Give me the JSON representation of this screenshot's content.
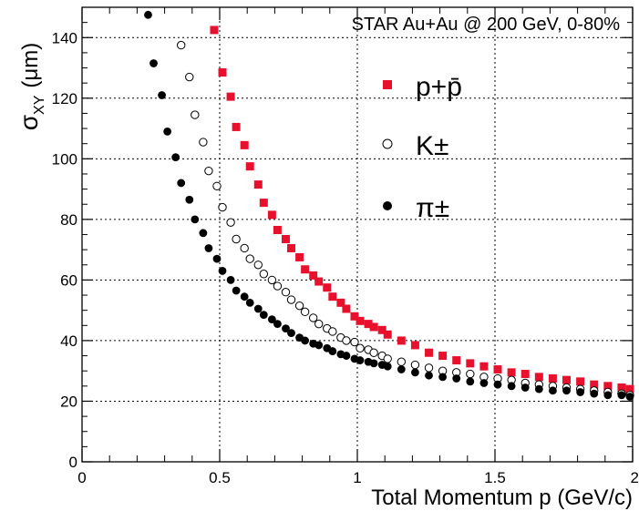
{
  "chart_data": {
    "type": "scatter",
    "annotation": "STAR Au+Au @ 200 GeV, 0-80%",
    "xlabel": "Total Momentum p (GeV/c)",
    "ylabel": {
      "sigma": "σ",
      "sub": "XY",
      "unit": "(μm)"
    },
    "xlim": [
      0,
      2
    ],
    "ylim": [
      0,
      150
    ],
    "x_ticks": [
      "0",
      "0.5",
      "1",
      "1.5",
      "2"
    ],
    "y_ticks": [
      "0",
      "20",
      "40",
      "60",
      "80",
      "100",
      "120",
      "140"
    ],
    "grid": true,
    "legend_position": "top-right",
    "series": [
      {
        "name": "p+p̄",
        "marker": "square-filled",
        "color": "#e8112d",
        "x": [
          0.48,
          0.51,
          0.54,
          0.56,
          0.59,
          0.61,
          0.64,
          0.66,
          0.69,
          0.71,
          0.74,
          0.76,
          0.79,
          0.81,
          0.84,
          0.86,
          0.89,
          0.91,
          0.94,
          0.96,
          0.99,
          1.01,
          1.04,
          1.06,
          1.09,
          1.11,
          1.16,
          1.21,
          1.26,
          1.31,
          1.36,
          1.41,
          1.46,
          1.51,
          1.56,
          1.61,
          1.66,
          1.71,
          1.76,
          1.81,
          1.86,
          1.91,
          1.96,
          1.99
        ],
        "y": [
          142.5,
          128.5,
          120.5,
          110.5,
          104.5,
          97.5,
          91.5,
          85.5,
          81.5,
          76.5,
          73.5,
          70.5,
          67.5,
          63.5,
          61.5,
          59.5,
          57.5,
          54.5,
          52.5,
          50.5,
          48.0,
          46.5,
          45.5,
          44.5,
          43.5,
          42.0,
          40.0,
          38.5,
          36.0,
          35.0,
          33.5,
          32.5,
          31.5,
          30.5,
          29.5,
          29.0,
          28.0,
          27.5,
          27.0,
          26.5,
          25.5,
          25.0,
          24.5,
          24.0
        ]
      },
      {
        "name": "K±",
        "marker": "circle-open",
        "color": "#000000",
        "x": [
          0.36,
          0.39,
          0.41,
          0.44,
          0.46,
          0.49,
          0.51,
          0.54,
          0.56,
          0.59,
          0.61,
          0.64,
          0.66,
          0.69,
          0.71,
          0.74,
          0.76,
          0.79,
          0.81,
          0.84,
          0.86,
          0.89,
          0.91,
          0.94,
          0.96,
          0.99,
          1.01,
          1.04,
          1.06,
          1.09,
          1.11,
          1.16,
          1.21,
          1.26,
          1.31,
          1.36,
          1.41,
          1.46,
          1.51,
          1.56,
          1.61,
          1.66,
          1.71,
          1.76,
          1.81,
          1.86,
          1.91,
          1.96,
          1.99
        ],
        "y": [
          137.5,
          127.0,
          114.5,
          105.5,
          96.0,
          91.0,
          84.0,
          79.0,
          73.5,
          70.5,
          67.0,
          65.0,
          62.0,
          60.0,
          58.0,
          56.0,
          53.5,
          51.5,
          49.5,
          47.5,
          45.5,
          44.0,
          43.0,
          41.0,
          40.0,
          39.5,
          37.5,
          37.0,
          36.0,
          35.0,
          34.0,
          33.0,
          32.0,
          31.0,
          30.0,
          29.5,
          29.0,
          28.0,
          27.5,
          27.0,
          26.0,
          25.5,
          25.0,
          24.5,
          24.0,
          23.5,
          23.0,
          22.5,
          22.0
        ]
      },
      {
        "name": "π±",
        "marker": "circle-filled",
        "color": "#000000",
        "x": [
          0.24,
          0.26,
          0.29,
          0.31,
          0.34,
          0.36,
          0.39,
          0.41,
          0.44,
          0.46,
          0.49,
          0.51,
          0.54,
          0.56,
          0.59,
          0.61,
          0.64,
          0.66,
          0.69,
          0.71,
          0.74,
          0.76,
          0.79,
          0.81,
          0.84,
          0.86,
          0.89,
          0.91,
          0.94,
          0.96,
          0.99,
          1.01,
          1.04,
          1.06,
          1.09,
          1.11,
          1.16,
          1.21,
          1.26,
          1.31,
          1.36,
          1.41,
          1.46,
          1.51,
          1.56,
          1.61,
          1.66,
          1.71,
          1.76,
          1.81,
          1.86,
          1.91,
          1.96,
          1.99
        ],
        "y": [
          147.5,
          131.5,
          121.0,
          109.0,
          100.5,
          92.0,
          86.5,
          80.0,
          75.5,
          70.5,
          67.0,
          63.0,
          60.0,
          56.5,
          54.5,
          52.5,
          50.5,
          48.5,
          47.0,
          45.5,
          44.0,
          42.5,
          41.0,
          40.0,
          39.0,
          38.5,
          37.5,
          36.5,
          35.5,
          35.0,
          34.0,
          33.5,
          33.0,
          32.5,
          32.0,
          31.5,
          30.5,
          29.5,
          28.5,
          28.0,
          27.5,
          26.5,
          26.0,
          25.5,
          25.0,
          24.5,
          24.0,
          23.5,
          23.5,
          23.0,
          22.5,
          22.0,
          22.0,
          21.5
        ]
      }
    ]
  }
}
